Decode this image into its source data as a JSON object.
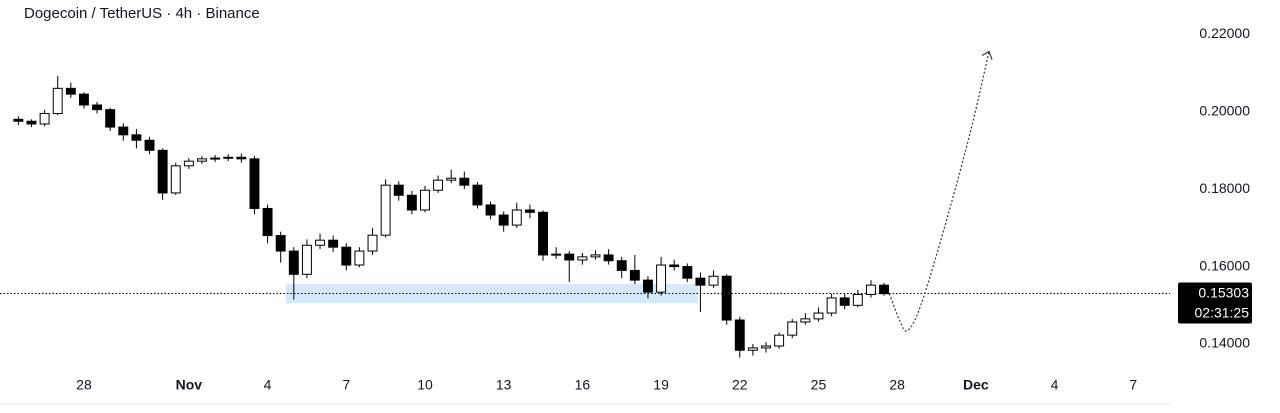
{
  "chart_data": {
    "type": "candlestick",
    "title": "Dogecoin / TetherUS · 4h · Binance",
    "x": [
      25.5,
      26,
      26.5,
      27,
      27.5,
      28,
      28.5,
      29,
      29.5,
      30,
      30.5,
      31,
      31.5,
      32,
      32.5,
      33,
      33.5,
      34,
      34.5,
      35,
      35.5,
      36,
      36.5,
      37,
      37.5,
      38,
      38.5,
      39,
      39.5,
      40,
      40.5,
      41,
      41.5,
      42,
      42.5,
      43,
      43.5,
      44,
      44.5,
      45,
      45.5,
      46,
      46.5,
      47,
      47.5,
      48,
      48.5,
      49,
      49.5,
      50,
      50.5,
      51,
      51.5,
      52,
      52.5,
      53,
      53.5,
      54,
      54.5,
      55,
      55.5,
      56,
      56.5,
      57,
      57.5,
      58,
      58.5
    ],
    "open": [
      0.198,
      0.1975,
      0.1968,
      0.1995,
      0.206,
      0.2045,
      0.2017,
      0.2005,
      0.196,
      0.194,
      0.1926,
      0.19,
      0.179,
      0.186,
      0.1872,
      0.1878,
      0.188,
      0.1882,
      0.1878,
      0.175,
      0.168,
      0.164,
      0.158,
      0.1655,
      0.1668,
      0.165,
      0.1604,
      0.164,
      0.1681,
      0.181,
      0.1784,
      0.1746,
      0.1797,
      0.1823,
      0.1828,
      0.181,
      0.1759,
      0.1733,
      0.1707,
      0.1746,
      0.174,
      0.163,
      0.1632,
      0.1617,
      0.1625,
      0.163,
      0.1615,
      0.159,
      0.1565,
      0.1534,
      0.1604,
      0.16,
      0.157,
      0.1552,
      0.1575,
      0.1462,
      0.1384,
      0.139,
      0.1395,
      0.1423,
      0.1457,
      0.1465,
      0.148,
      0.1519,
      0.15,
      0.1528,
      0.1552
    ],
    "high": [
      0.1988,
      0.198,
      0.2005,
      0.2092,
      0.2075,
      0.205,
      0.2025,
      0.201,
      0.197,
      0.1955,
      0.1935,
      0.1905,
      0.1868,
      0.188,
      0.1885,
      0.1888,
      0.189,
      0.1892,
      0.1885,
      0.176,
      0.169,
      0.165,
      0.167,
      0.1685,
      0.168,
      0.166,
      0.165,
      0.17,
      0.1825,
      0.182,
      0.1795,
      0.1808,
      0.1835,
      0.185,
      0.1845,
      0.1818,
      0.1768,
      0.1742,
      0.1765,
      0.176,
      0.1745,
      0.165,
      0.164,
      0.1635,
      0.1642,
      0.1645,
      0.1625,
      0.163,
      0.1575,
      0.1625,
      0.1618,
      0.1608,
      0.1585,
      0.159,
      0.158,
      0.147,
      0.14,
      0.1405,
      0.143,
      0.1465,
      0.148,
      0.1495,
      0.153,
      0.153,
      0.154,
      0.1565,
      0.1558
    ],
    "low": [
      0.1965,
      0.196,
      0.1962,
      0.199,
      0.2035,
      0.2008,
      0.1995,
      0.195,
      0.1925,
      0.1905,
      0.189,
      0.1772,
      0.1785,
      0.1852,
      0.1865,
      0.187,
      0.1872,
      0.1868,
      0.1735,
      0.166,
      0.161,
      0.1515,
      0.157,
      0.1645,
      0.1638,
      0.159,
      0.1598,
      0.163,
      0.1675,
      0.177,
      0.1735,
      0.174,
      0.179,
      0.1815,
      0.18,
      0.175,
      0.1722,
      0.169,
      0.17,
      0.1725,
      0.1615,
      0.162,
      0.156,
      0.1605,
      0.1618,
      0.1605,
      0.157,
      0.1555,
      0.1518,
      0.1525,
      0.159,
      0.156,
      0.1483,
      0.1545,
      0.145,
      0.1365,
      0.137,
      0.1378,
      0.1388,
      0.1415,
      0.145,
      0.1458,
      0.1472,
      0.149,
      0.1495,
      0.152,
      0.1525
    ],
    "close": [
      0.1975,
      0.1968,
      0.1995,
      0.206,
      0.2045,
      0.2017,
      0.2005,
      0.196,
      0.194,
      0.1926,
      0.19,
      0.179,
      0.186,
      0.1872,
      0.1878,
      0.188,
      0.1882,
      0.1878,
      0.175,
      0.168,
      0.164,
      0.158,
      0.1655,
      0.1668,
      0.165,
      0.1604,
      0.164,
      0.1681,
      0.181,
      0.1784,
      0.1746,
      0.1797,
      0.1823,
      0.1828,
      0.181,
      0.1759,
      0.1733,
      0.1707,
      0.1746,
      0.174,
      0.163,
      0.1632,
      0.1617,
      0.1625,
      0.163,
      0.1615,
      0.159,
      0.1565,
      0.1534,
      0.1604,
      0.16,
      0.157,
      0.1552,
      0.1575,
      0.1462,
      0.1384,
      0.139,
      0.1395,
      0.1423,
      0.1457,
      0.1465,
      0.148,
      0.1519,
      0.15,
      0.1528,
      0.1552,
      0.153
    ],
    "up_color": "#ffffff",
    "down_color": "#000000",
    "xlim": [
      24.8,
      69.4
    ],
    "ylim": [
      0.1333,
      0.2288
    ],
    "xticks": [
      28,
      {
        "value": 32,
        "label": "Nov"
      },
      {
        "value": 35,
        "label": "4"
      },
      {
        "value": 38,
        "label": "7"
      },
      {
        "value": 41,
        "label": "10"
      },
      {
        "value": 44,
        "label": "13"
      },
      {
        "value": 47,
        "label": "16"
      },
      {
        "value": 50,
        "label": "19"
      },
      {
        "value": 53,
        "label": "22"
      },
      {
        "value": 56,
        "label": "25"
      },
      {
        "value": 59,
        "label": "28"
      },
      {
        "value": 62,
        "label": "Dec"
      },
      {
        "value": 65,
        "label": "4"
      },
      {
        "value": 68,
        "label": "7"
      }
    ],
    "yticks": [
      {
        "value": 0.22,
        "label": "0.22000"
      },
      {
        "value": 0.2,
        "label": "0.20000"
      },
      {
        "value": 0.18,
        "label": "0.18000"
      },
      {
        "value": 0.16,
        "label": "0.16000"
      },
      {
        "value": 0.14,
        "label": "0.14000"
      }
    ],
    "last_price": 0.15303,
    "countdown": "02:31:25",
    "zone": {
      "x": [
        35.7,
        51.4
      ],
      "y": [
        0.1506,
        0.1555
      ],
      "color": "#d6e8fb"
    },
    "projection": {
      "x": [
        58.7,
        59.1,
        59.4,
        59.9,
        60.8,
        61.8,
        62.5
      ],
      "y": [
        0.153,
        0.146,
        0.1435,
        0.15,
        0.17,
        0.195,
        0.2155
      ]
    }
  }
}
